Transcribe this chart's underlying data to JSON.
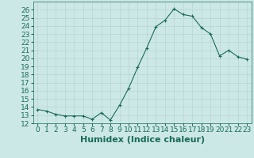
{
  "x": [
    0,
    1,
    2,
    3,
    4,
    5,
    6,
    7,
    8,
    9,
    10,
    11,
    12,
    13,
    14,
    15,
    16,
    17,
    18,
    19,
    20,
    21,
    22,
    23
  ],
  "y": [
    13.7,
    13.5,
    13.1,
    12.9,
    12.9,
    12.9,
    12.5,
    13.3,
    12.4,
    14.2,
    16.3,
    18.9,
    21.3,
    23.9,
    24.7,
    26.1,
    25.4,
    25.2,
    23.8,
    23.0,
    20.3,
    21.0,
    20.2,
    19.9
  ],
  "xlabel": "Humidex (Indice chaleur)",
  "ylim": [
    12,
    27
  ],
  "xlim": [
    -0.5,
    23.5
  ],
  "yticks": [
    12,
    13,
    14,
    15,
    16,
    17,
    18,
    19,
    20,
    21,
    22,
    23,
    24,
    25,
    26
  ],
  "xtick_labels": [
    "0",
    "1",
    "2",
    "3",
    "4",
    "5",
    "6",
    "7",
    "8",
    "9",
    "10",
    "11",
    "12",
    "13",
    "14",
    "15",
    "16",
    "17",
    "18",
    "19",
    "20",
    "21",
    "22",
    "23"
  ],
  "line_color": "#1a6b5a",
  "marker": "+",
  "bg_color": "#cce8e6",
  "grid_color": "#b8d4d2",
  "font_color": "#1a6b5a",
  "tick_fontsize": 6.5,
  "xlabel_fontsize": 8
}
